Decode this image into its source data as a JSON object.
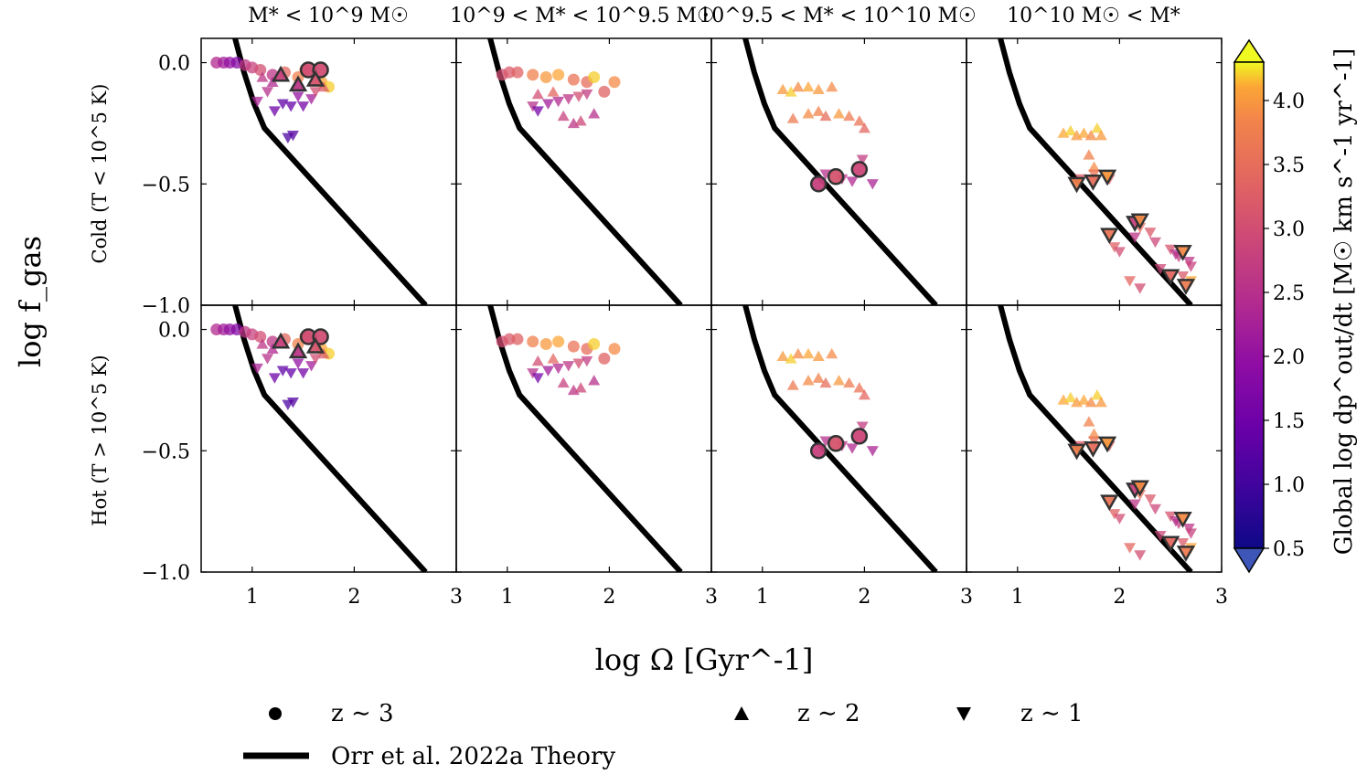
{
  "chart_data": {
    "type": "scatter",
    "layout": "2x4 panel grid sharing axes",
    "column_titles": [
      "M* < 10^9 M☉",
      "10^9 < M* < 10^9.5 M☉",
      "10^9.5 < M* < 10^10 M☉",
      "10^10 M☉ < M*"
    ],
    "row_labels": [
      "Cold (T < 10^5 K)",
      "Hot (T > 10^5 K)"
    ],
    "xlabel": "log Ω [Gyr^-1]",
    "ylabel": "log f_gas",
    "xlim": [
      0.5,
      3.0
    ],
    "ylim": [
      -1.0,
      0.1
    ],
    "xticks": [
      "1",
      "2",
      "3"
    ],
    "yticks": [
      "0.0",
      "−0.5",
      "−1.0"
    ],
    "colorbar": {
      "label": "Global log dp^out/dt [M☉ km s^-1 yr^-1]",
      "range": [
        0.5,
        4.3
      ],
      "ticks": [
        "0.5",
        "1.0",
        "1.5",
        "2.0",
        "2.5",
        "3.0",
        "3.5",
        "4.0"
      ],
      "extend": "both",
      "colormap": "plasma"
    },
    "theory_line": {
      "name": "Orr et al. 2022a Theory",
      "x": [
        0.82,
        0.92,
        1.02,
        1.12,
        2.7
      ],
      "y": [
        0.12,
        -0.04,
        -0.17,
        -0.27,
        -1.0
      ]
    },
    "legend": [
      {
        "marker": "circle",
        "label": "z ∼ 3"
      },
      {
        "marker": "triangle-up",
        "label": "z ∼ 2"
      },
      {
        "marker": "triangle-down",
        "label": "z ∼ 1"
      },
      {
        "marker": "line",
        "label": "Orr et al. 2022a Theory"
      }
    ],
    "series": [
      {
        "panel": "M* < 10^9",
        "points": [
          [
            0.65,
            0.0,
            2.4,
            "o",
            0
          ],
          [
            0.72,
            0.0,
            2.2,
            "o",
            0
          ],
          [
            0.78,
            0.0,
            2.0,
            "o",
            0
          ],
          [
            0.85,
            0.0,
            1.8,
            "o",
            0
          ],
          [
            0.93,
            -0.01,
            2.6,
            "o",
            0
          ],
          [
            1.0,
            -0.02,
            2.8,
            "o",
            0
          ],
          [
            1.08,
            -0.03,
            3.0,
            "o",
            0
          ],
          [
            1.2,
            -0.05,
            2.6,
            "o",
            0
          ],
          [
            1.32,
            -0.04,
            3.4,
            "o",
            0
          ],
          [
            1.45,
            -0.06,
            3.8,
            "o",
            0
          ],
          [
            1.52,
            -0.03,
            3.6,
            "o",
            0
          ],
          [
            1.68,
            -0.08,
            4.1,
            "o",
            0
          ],
          [
            1.75,
            -0.1,
            4.2,
            "o",
            0
          ],
          [
            1.55,
            -0.03,
            3.0,
            "o",
            1
          ],
          [
            1.67,
            -0.03,
            3.0,
            "o",
            1
          ],
          [
            1.1,
            -0.06,
            2.6,
            "^",
            0
          ],
          [
            1.2,
            -0.08,
            2.4,
            "^",
            0
          ],
          [
            1.28,
            -0.05,
            2.8,
            "^",
            1
          ],
          [
            1.45,
            -0.09,
            2.6,
            "^",
            1
          ],
          [
            1.62,
            -0.07,
            3.1,
            "^",
            1
          ],
          [
            1.7,
            -0.1,
            3.2,
            "^",
            0
          ],
          [
            1.05,
            -0.16,
            2.3,
            "v",
            0
          ],
          [
            1.15,
            -0.12,
            2.5,
            "v",
            0
          ],
          [
            1.22,
            -0.2,
            1.5,
            "v",
            0
          ],
          [
            1.3,
            -0.17,
            1.3,
            "v",
            0
          ],
          [
            1.38,
            -0.18,
            1.4,
            "v",
            0
          ],
          [
            1.45,
            -0.14,
            2.0,
            "v",
            0
          ],
          [
            1.5,
            -0.18,
            1.6,
            "v",
            0
          ],
          [
            1.58,
            -0.15,
            2.2,
            "v",
            0
          ],
          [
            1.62,
            -0.12,
            3.0,
            "v",
            0
          ],
          [
            1.35,
            -0.31,
            1.1,
            "v",
            0
          ],
          [
            1.4,
            -0.3,
            1.2,
            "v",
            0
          ]
        ]
      },
      {
        "panel": "10^9 < M* < 10^9.5",
        "points": [
          [
            0.95,
            -0.05,
            3.0,
            "o",
            0
          ],
          [
            1.02,
            -0.04,
            3.2,
            "o",
            0
          ],
          [
            1.1,
            -0.04,
            3.3,
            "o",
            0
          ],
          [
            1.25,
            -0.05,
            3.8,
            "o",
            0
          ],
          [
            1.38,
            -0.06,
            4.0,
            "o",
            0
          ],
          [
            1.5,
            -0.05,
            4.1,
            "o",
            0
          ],
          [
            1.65,
            -0.07,
            3.6,
            "o",
            0
          ],
          [
            1.78,
            -0.08,
            3.5,
            "o",
            0
          ],
          [
            2.05,
            -0.08,
            3.9,
            "o",
            0
          ],
          [
            1.95,
            -0.12,
            3.3,
            "o",
            0
          ],
          [
            1.85,
            -0.06,
            4.2,
            "o",
            0
          ],
          [
            1.3,
            -0.13,
            3.0,
            "^",
            0
          ],
          [
            1.45,
            -0.12,
            3.4,
            "^",
            0
          ],
          [
            1.55,
            -0.22,
            2.8,
            "^",
            0
          ],
          [
            1.65,
            -0.25,
            2.6,
            "^",
            0
          ],
          [
            1.72,
            -0.24,
            2.9,
            "^",
            0
          ],
          [
            1.85,
            -0.21,
            2.5,
            "^",
            0
          ],
          [
            1.25,
            -0.18,
            2.5,
            "v",
            0
          ],
          [
            1.3,
            -0.2,
            1.6,
            "v",
            0
          ],
          [
            1.4,
            -0.17,
            2.2,
            "v",
            0
          ],
          [
            1.5,
            -0.16,
            2.4,
            "v",
            0
          ],
          [
            1.6,
            -0.15,
            2.6,
            "v",
            0
          ],
          [
            1.7,
            -0.14,
            3.0,
            "v",
            0
          ],
          [
            1.78,
            -0.13,
            2.7,
            "v",
            0
          ]
        ]
      },
      {
        "panel": "10^9.5 < M* < 10^10",
        "points": [
          [
            1.55,
            -0.5,
            2.8,
            "o",
            1
          ],
          [
            1.72,
            -0.47,
            3.1,
            "o",
            1
          ],
          [
            1.95,
            -0.44,
            2.9,
            "o",
            1
          ],
          [
            1.2,
            -0.11,
            4.0,
            "^",
            0
          ],
          [
            1.28,
            -0.12,
            4.2,
            "^",
            0
          ],
          [
            1.35,
            -0.1,
            3.9,
            "^",
            0
          ],
          [
            1.45,
            -0.1,
            4.1,
            "^",
            0
          ],
          [
            1.55,
            -0.11,
            4.0,
            "^",
            0
          ],
          [
            1.68,
            -0.1,
            3.9,
            "^",
            0
          ],
          [
            1.3,
            -0.23,
            3.7,
            "^",
            0
          ],
          [
            1.45,
            -0.21,
            3.9,
            "^",
            0
          ],
          [
            1.55,
            -0.2,
            3.8,
            "^",
            0
          ],
          [
            1.62,
            -0.22,
            3.5,
            "^",
            0
          ],
          [
            1.75,
            -0.21,
            4.0,
            "^",
            0
          ],
          [
            1.85,
            -0.22,
            3.7,
            "^",
            0
          ],
          [
            1.95,
            -0.24,
            3.6,
            "^",
            0
          ],
          [
            2.0,
            -0.27,
            3.4,
            "^",
            0
          ],
          [
            1.62,
            -0.46,
            2.5,
            "v",
            0
          ],
          [
            1.78,
            -0.48,
            2.6,
            "v",
            0
          ],
          [
            1.88,
            -0.49,
            2.4,
            "v",
            0
          ],
          [
            1.98,
            -0.4,
            2.7,
            "v",
            0
          ],
          [
            2.08,
            -0.5,
            2.3,
            "v",
            0
          ]
        ]
      },
      {
        "panel": "10^10 M☉ < M*",
        "points": [
          [
            1.45,
            -0.29,
            4.1,
            "^",
            0
          ],
          [
            1.52,
            -0.28,
            4.2,
            "^",
            0
          ],
          [
            1.58,
            -0.3,
            4.0,
            "^",
            0
          ],
          [
            1.65,
            -0.29,
            4.1,
            "^",
            0
          ],
          [
            1.72,
            -0.3,
            3.9,
            "^",
            0
          ],
          [
            1.78,
            -0.27,
            4.2,
            "^",
            0
          ],
          [
            1.82,
            -0.3,
            4.0,
            "^",
            0
          ],
          [
            1.7,
            -0.38,
            3.8,
            "^",
            0
          ],
          [
            1.75,
            -0.43,
            3.9,
            "^",
            0
          ],
          [
            1.58,
            -0.5,
            3.8,
            "v",
            1
          ],
          [
            1.74,
            -0.49,
            3.5,
            "v",
            1
          ],
          [
            1.88,
            -0.47,
            4.0,
            "v",
            1
          ],
          [
            1.62,
            -0.48,
            3.2,
            "v",
            0
          ],
          [
            1.75,
            -0.46,
            3.6,
            "v",
            0
          ],
          [
            1.9,
            -0.48,
            3.3,
            "v",
            0
          ],
          [
            2.15,
            -0.66,
            2.8,
            "v",
            1
          ],
          [
            2.2,
            -0.65,
            3.9,
            "v",
            1
          ],
          [
            2.2,
            -0.68,
            3.5,
            "v",
            0
          ],
          [
            2.3,
            -0.7,
            3.2,
            "v",
            0
          ],
          [
            2.35,
            -0.74,
            2.9,
            "v",
            0
          ],
          [
            1.9,
            -0.71,
            3.6,
            "v",
            1
          ],
          [
            1.95,
            -0.76,
            3.3,
            "v",
            0
          ],
          [
            2.0,
            -0.78,
            3.0,
            "v",
            0
          ],
          [
            2.15,
            -0.72,
            2.6,
            "v",
            0
          ],
          [
            2.4,
            -0.85,
            2.9,
            "v",
            0
          ],
          [
            2.5,
            -0.88,
            3.4,
            "v",
            1
          ],
          [
            2.58,
            -0.8,
            2.7,
            "v",
            0
          ],
          [
            2.62,
            -0.78,
            3.9,
            "v",
            1
          ],
          [
            2.68,
            -0.82,
            2.6,
            "v",
            0
          ],
          [
            2.7,
            -0.84,
            2.8,
            "v",
            0
          ],
          [
            2.65,
            -0.92,
            3.7,
            "v",
            1
          ],
          [
            2.7,
            -0.9,
            4.1,
            "v",
            0
          ],
          [
            2.62,
            -0.88,
            3.2,
            "v",
            0
          ],
          [
            2.2,
            -0.93,
            3.0,
            "v",
            0
          ],
          [
            2.1,
            -0.9,
            3.4,
            "v",
            0
          ],
          [
            2.5,
            -0.77,
            3.1,
            "v",
            0
          ],
          [
            2.55,
            -0.79,
            2.5,
            "v",
            0
          ]
        ]
      }
    ],
    "series_note": "points are [log Omega, log f_gas, color value, marker, black-outlined flag]; the Hot row shows the same galaxy sample"
  }
}
